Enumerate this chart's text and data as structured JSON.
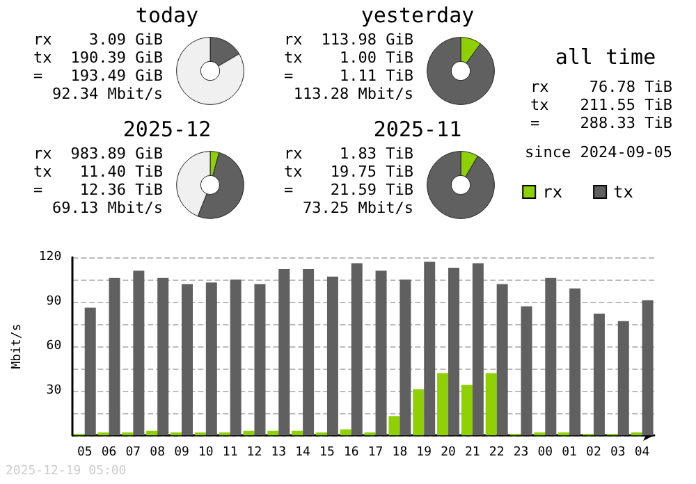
{
  "chart_data": [
    {
      "type": "donut",
      "title": "today",
      "categories": [
        null,
        null,
        null
      ],
      "values": [
        null,
        16.5,
        83.2
      ],
      "colors": [
        "#8fd000",
        "#606060",
        "#f0f0f0"
      ],
      "annotations": [
        "rx 3.09 GiB",
        "tx 190.39 GiB",
        "= 193.49 GiB",
        "92.34 Mbit/s"
      ]
    },
    {
      "type": "donut",
      "title": "yesterday",
      "categories": [
        null,
        null
      ],
      "values": [
        10,
        90
      ],
      "colors": [
        "#8fd000",
        "#606060"
      ],
      "annotations": [
        "rx 113.98 GiB",
        "tx 1.00 TiB",
        "= 1.11 TiB",
        "113.28 Mbit/s"
      ]
    },
    {
      "type": "donut",
      "title": "2025-12",
      "categories": [
        null,
        null,
        null
      ],
      "values": [
        4.3,
        51.7,
        44
      ],
      "colors": [
        "#8fd000",
        "#606060",
        "#f0f0f0"
      ],
      "annotations": [
        "rx 983.89 GiB",
        "tx 11.40 TiB",
        "= 12.36 TiB",
        "69.13 Mbit/s"
      ]
    },
    {
      "type": "donut",
      "title": "2025-11",
      "categories": [
        null,
        null
      ],
      "values": [
        8.5,
        91.5
      ],
      "colors": [
        "#8fd000",
        "#606060"
      ],
      "annotations": [
        "rx 1.83 TiB",
        "tx 19.75 TiB",
        "= 21.59 TiB",
        "73.25 Mbit/s"
      ]
    },
    {
      "type": "other",
      "title": "all time",
      "annotations": [
        "rx 76.78 TiB",
        "tx 211.55 TiB",
        "= 288.33 TiB",
        "since 2024-09-05"
      ]
    },
    {
      "type": "bar",
      "ylabel": "Mbit/s",
      "categories": [
        "05",
        "06",
        "07",
        "08",
        "09",
        "10",
        "11",
        "12",
        "13",
        "14",
        "15",
        "16",
        "17",
        "18",
        "19",
        "20",
        "21",
        "22",
        "23",
        "00",
        "01",
        "02",
        "03",
        "04"
      ],
      "series": [
        {
          "name": "rx",
          "color": "#8fd000",
          "values": [
            1,
            2,
            2,
            3,
            2,
            2,
            2,
            3,
            3,
            3,
            2,
            4,
            2,
            13,
            31,
            42,
            34,
            42,
            1,
            2,
            2,
            1,
            1,
            2
          ]
        },
        {
          "name": "tx",
          "color": "#606060",
          "values": [
            86,
            106,
            111,
            106,
            102,
            103,
            105,
            102,
            112,
            112,
            107,
            116,
            111,
            105,
            117,
            113,
            116,
            102,
            87,
            106,
            99,
            82,
            77,
            91
          ]
        }
      ],
      "ylim": [
        0,
        120
      ],
      "yticks": [
        {
          "value": 0,
          "label": null
        },
        {
          "value": 15,
          "label": null
        },
        30,
        {
          "value": 45,
          "label": null
        },
        60,
        {
          "value": 75,
          "label": null
        },
        90,
        {
          "value": 105,
          "label": null
        },
        120
      ],
      "grid": "y",
      "legend": "top right",
      "annotations": [
        "2025-12-19 05:00"
      ]
    }
  ]
}
